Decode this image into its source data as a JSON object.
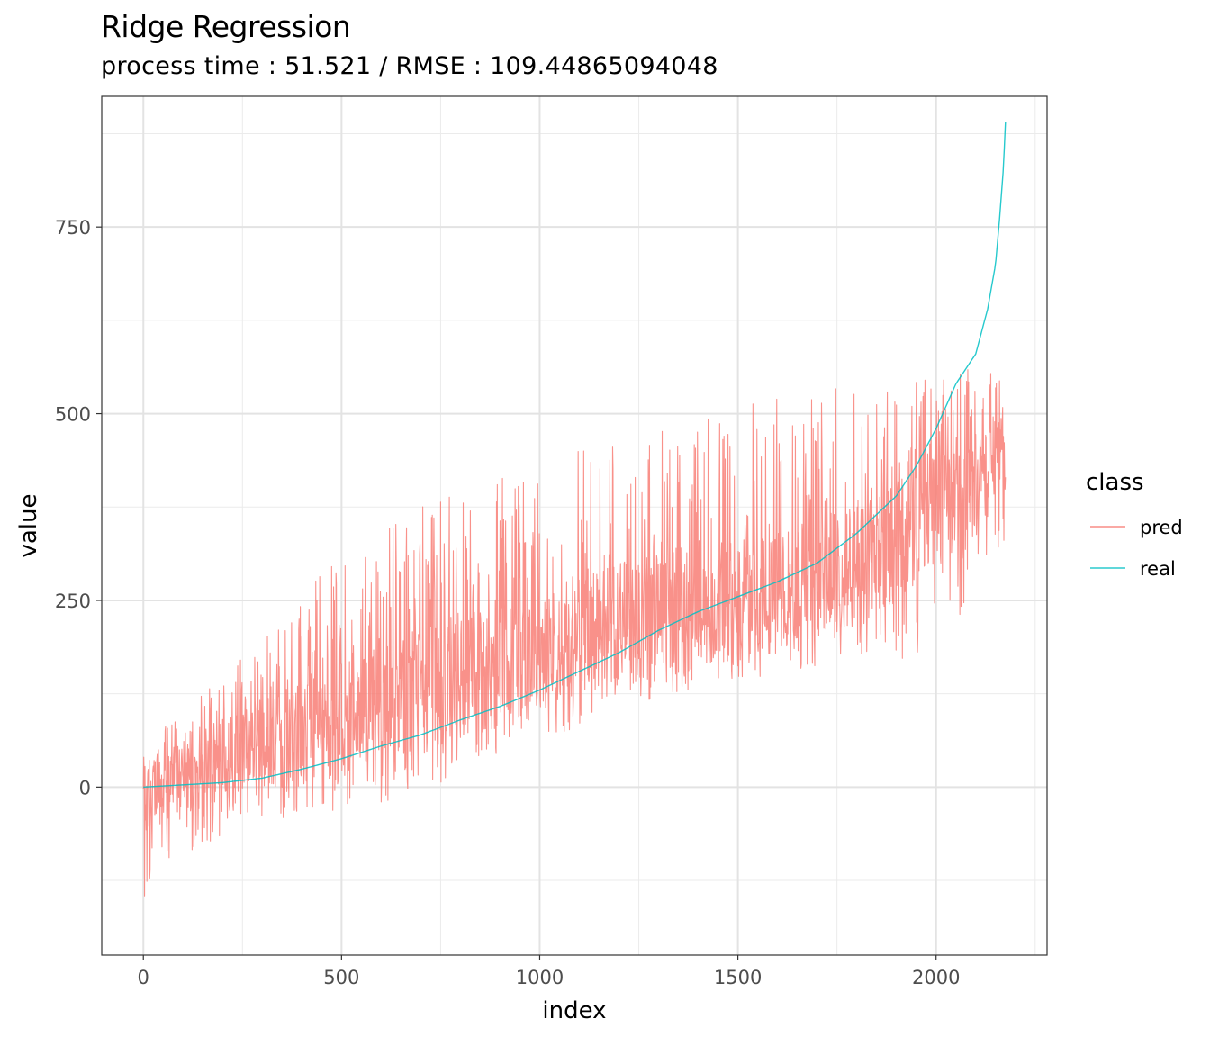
{
  "chart_data": {
    "type": "line",
    "title": "Ridge Regression",
    "subtitle": "process time : 51.521 / RMSE : 109.44865094048",
    "xlabel": "index",
    "ylabel": "value",
    "xlim": [
      -105,
      2280
    ],
    "ylim": [
      -225,
      925
    ],
    "x_ticks": [
      0,
      500,
      1000,
      1500,
      2000
    ],
    "x_tick_labels": [
      "0",
      "500",
      "1000",
      "1500",
      "2000"
    ],
    "y_ticks": [
      0,
      250,
      500,
      750
    ],
    "y_tick_labels": [
      "0",
      "250",
      "500",
      "750"
    ],
    "grid": true,
    "legend": {
      "title": "class",
      "position": "right"
    },
    "colors": {
      "pred": "#F8766D",
      "real": "#00BFC4"
    },
    "series": [
      {
        "name": "pred",
        "noise_seed": 7,
        "envelope_x": [
          0,
          50,
          100,
          200,
          300,
          400,
          500,
          600,
          700,
          800,
          900,
          1000,
          1100,
          1200,
          1300,
          1400,
          1500,
          1600,
          1700,
          1800,
          1900,
          2000,
          2050,
          2100,
          2175
        ],
        "lower": [
          -160,
          -120,
          -90,
          -70,
          -60,
          -40,
          -30,
          -20,
          -10,
          20,
          40,
          60,
          80,
          100,
          120,
          130,
          140,
          150,
          160,
          170,
          170,
          180,
          190,
          290,
          330
        ],
        "upper": [
          40,
          80,
          100,
          150,
          200,
          260,
          310,
          350,
          380,
          400,
          420,
          430,
          450,
          470,
          490,
          500,
          510,
          520,
          530,
          540,
          550,
          560,
          560,
          560,
          560
        ],
        "center": [
          -20,
          15,
          30,
          40,
          55,
          70,
          90,
          105,
          130,
          150,
          165,
          180,
          200,
          215,
          235,
          240,
          250,
          260,
          280,
          300,
          330,
          380,
          390,
          400,
          450
        ]
      },
      {
        "name": "real",
        "x": [
          0,
          100,
          200,
          300,
          400,
          500,
          600,
          700,
          800,
          900,
          1000,
          1100,
          1200,
          1300,
          1400,
          1500,
          1600,
          1700,
          1800,
          1900,
          1950,
          2000,
          2050,
          2100,
          2130,
          2150,
          2160,
          2170,
          2175
        ],
        "values": [
          0,
          3,
          6,
          12,
          24,
          38,
          55,
          70,
          90,
          108,
          130,
          155,
          180,
          210,
          235,
          255,
          275,
          300,
          340,
          390,
          430,
          480,
          540,
          580,
          640,
          700,
          760,
          830,
          890
        ]
      }
    ]
  }
}
